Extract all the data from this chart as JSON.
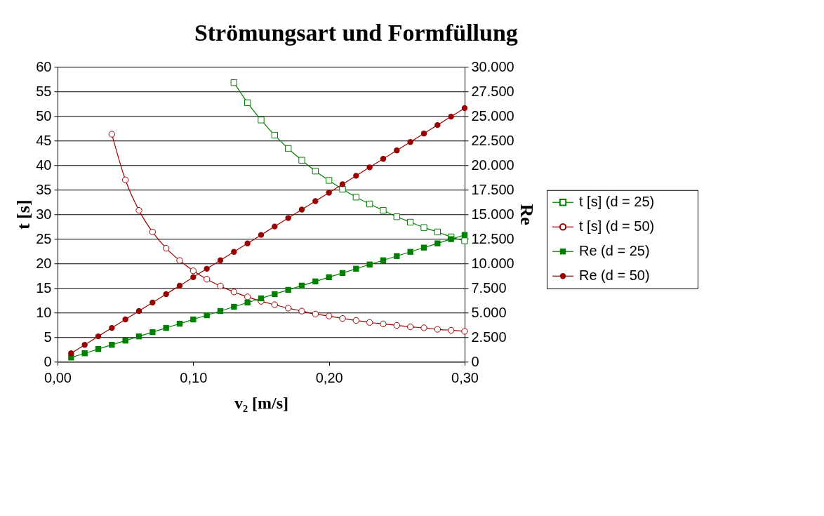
{
  "chart_data": {
    "type": "line",
    "title": "Strömungsart und Formfüllung",
    "xlabel": "v₂ [m/s]",
    "ylabel": "t [s]",
    "y2label": "Re",
    "x": [
      0.01,
      0.02,
      0.03,
      0.04,
      0.05,
      0.06,
      0.07,
      0.08,
      0.09,
      0.1,
      0.11,
      0.12,
      0.13,
      0.14,
      0.15,
      0.16,
      0.17,
      0.18,
      0.19,
      0.2,
      0.21,
      0.22,
      0.23,
      0.24,
      0.25,
      0.26,
      0.27,
      0.28,
      0.29,
      0.3
    ],
    "series": [
      {
        "name": "t [s] (d = 25)",
        "color": "#008000",
        "marker": "square",
        "axis": "y",
        "values": [
          null,
          null,
          null,
          null,
          null,
          null,
          null,
          null,
          null,
          null,
          null,
          null,
          56.8,
          52.7,
          49.2,
          46.1,
          43.4,
          41.0,
          38.8,
          36.9,
          35.1,
          33.5,
          32.1,
          30.8,
          29.5,
          28.4,
          27.3,
          26.4,
          25.4,
          24.6
        ]
      },
      {
        "name": "t [s] (d = 50)",
        "color": "#990000",
        "marker": "circle",
        "axis": "y",
        "values": [
          null,
          null,
          null,
          46.3,
          37.0,
          30.8,
          26.4,
          23.1,
          20.6,
          18.5,
          16.8,
          15.4,
          14.2,
          13.2,
          12.3,
          11.6,
          10.9,
          10.3,
          9.7,
          9.3,
          8.8,
          8.4,
          8.0,
          7.7,
          7.4,
          7.1,
          6.9,
          6.6,
          6.4,
          6.2
        ]
      },
      {
        "name": "Re  (d = 25)",
        "color": "#008000",
        "marker": "square",
        "axis": "y2",
        "values": [
          430,
          860,
          1290,
          1720,
          2150,
          2580,
          3010,
          3440,
          3870,
          4300,
          4730,
          5160,
          5590,
          6020,
          6450,
          6880,
          7310,
          7740,
          8170,
          8600,
          9030,
          9460,
          9890,
          10320,
          10750,
          11180,
          11610,
          12040,
          12470,
          12900
        ]
      },
      {
        "name": "Re  (d = 50)",
        "color": "#990000",
        "marker": "circle",
        "axis": "y2",
        "values": [
          860,
          1720,
          2580,
          3440,
          4300,
          5160,
          6020,
          6880,
          7740,
          8600,
          9460,
          10320,
          11180,
          12040,
          12900,
          13760,
          14620,
          15480,
          16340,
          17200,
          18060,
          18920,
          19780,
          20640,
          21500,
          22360,
          23220,
          24080,
          24940,
          25800
        ]
      }
    ],
    "xlim": [
      0,
      0.3
    ],
    "xticks": [
      {
        "value": 0,
        "label": "0,00"
      },
      {
        "value": 0.1,
        "label": "0,10"
      },
      {
        "value": 0.2,
        "label": "0,20"
      },
      {
        "value": 0.3,
        "label": "0,30"
      }
    ],
    "ylim": [
      0,
      60
    ],
    "yticks": [
      0,
      5,
      10,
      15,
      20,
      25,
      30,
      35,
      40,
      45,
      50,
      55,
      60
    ],
    "y2lim": [
      0,
      30000
    ],
    "y2ticks": [
      {
        "value": 0,
        "label": "0"
      },
      {
        "value": 2500,
        "label": "2.500"
      },
      {
        "value": 5000,
        "label": "5.000"
      },
      {
        "value": 7500,
        "label": "7.500"
      },
      {
        "value": 10000,
        "label": "10.000"
      },
      {
        "value": 12500,
        "label": "12.500"
      },
      {
        "value": 15000,
        "label": "15.000"
      },
      {
        "value": 17500,
        "label": "17.500"
      },
      {
        "value": 20000,
        "label": "20.000"
      },
      {
        "value": 22500,
        "label": "22.500"
      },
      {
        "value": 25000,
        "label": "25.000"
      },
      {
        "value": 27500,
        "label": "27.500"
      },
      {
        "value": 30000,
        "label": "30.000"
      }
    ],
    "grid": "y",
    "legend": "right",
    "line_style": "solid"
  }
}
